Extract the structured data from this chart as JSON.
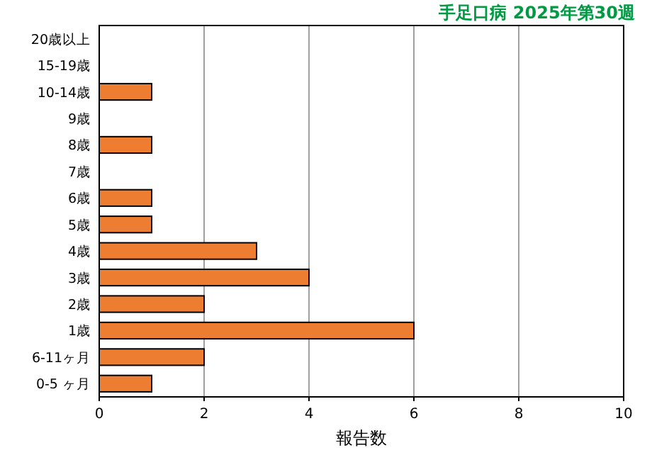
{
  "chart_data": {
    "type": "bar",
    "orientation": "horizontal",
    "title": "手足口病 2025年第30週",
    "xlabel": "報告数",
    "categories": [
      "20歳以上",
      "15-19歳",
      "10-14歳",
      "9歳",
      "8歳",
      "7歳",
      "6歳",
      "5歳",
      "4歳",
      "3歳",
      "2歳",
      "1歳",
      "6-11ヶ月",
      "0-5 ヶ月"
    ],
    "values": [
      0,
      0,
      1,
      0,
      1,
      0,
      1,
      1,
      3,
      4,
      2,
      6,
      2,
      1
    ],
    "color": "#ed7d31",
    "xlim": [
      0,
      10
    ],
    "xticks": [
      0,
      2,
      4,
      6,
      8,
      10
    ],
    "grid": "x"
  }
}
